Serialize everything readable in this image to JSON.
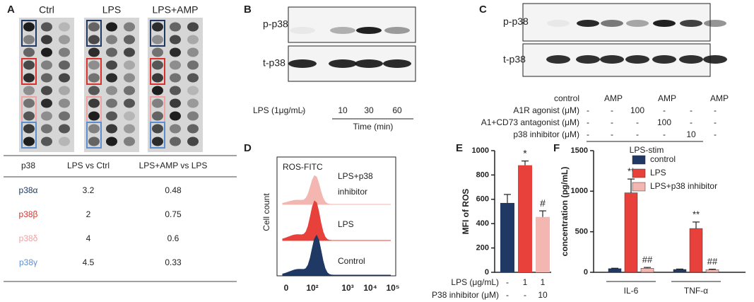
{
  "panel_a": {
    "letter": "A",
    "headers": [
      "Ctrl",
      "LPS",
      "LPS+AMP"
    ],
    "table": {
      "header": [
        "p38",
        "LPS vs Ctrl",
        "LPS+AMP vs LPS"
      ],
      "rows": [
        [
          "p38α",
          3.2,
          0.48
        ],
        [
          "p38β",
          2,
          0.75
        ],
        [
          "p38δ",
          4,
          0.6
        ],
        [
          "p38γ",
          4.5,
          0.33
        ]
      ],
      "row_colors": [
        "#1f3864",
        "#d9322c",
        "#f0a3a0",
        "#5b8fd1"
      ]
    }
  },
  "panel_b": {
    "letter": "B",
    "rows": [
      "p-p38",
      "t-p38"
    ],
    "condition_label": "LPS (1μg/mL)",
    "conditions": [
      "-",
      "10",
      "30",
      "60"
    ],
    "axis_label": "Time (min)"
  },
  "panel_c": {
    "letter": "C",
    "rows": [
      "p-p38",
      "t-p38"
    ],
    "lanes": [
      "control",
      "AMP",
      "AMP",
      "AMP"
    ],
    "treatments": [
      {
        "label": "A1R agonist (μM)",
        "values": [
          "-",
          "-",
          "100",
          "-",
          "-",
          "-"
        ]
      },
      {
        "label": "A1+CD73 antagonist (μM)",
        "values": [
          "-",
          "-",
          "-",
          "100",
          "-",
          "-"
        ]
      },
      {
        "label": "p38  inhibitor (μM)",
        "values": [
          "-",
          "-",
          "-",
          "-",
          "10",
          "-"
        ]
      }
    ],
    "group_label": "LPS-stim"
  },
  "panel_d": {
    "letter": "D",
    "stain": "ROS-FITC",
    "y_label": "Cell count",
    "samples": [
      [
        "LPS+p38",
        "inhibitor"
      ],
      [
        "LPS"
      ],
      [
        "Control"
      ]
    ],
    "xticks": [
      "0",
      "10²",
      "10³",
      "10⁴",
      "10⁵"
    ]
  },
  "chart_data": [
    {
      "type": "bar",
      "label": "E",
      "y_label": "MFI of ROS",
      "values": [
        570,
        880,
        455
      ],
      "errors": [
        70,
        35,
        50
      ],
      "annotations": [
        null,
        "*",
        "#"
      ],
      "colors": [
        "#1f3864",
        "#e8403a",
        "#f4b6b0"
      ],
      "ylim": [
        0,
        1000
      ],
      "yticks": [
        0,
        200,
        400,
        600,
        800,
        1000
      ],
      "conditions": [
        {
          "label": "LPS (μg/mL)",
          "values": [
            "-",
            "1",
            "1"
          ]
        },
        {
          "label": "P38 inhibitor (μM)",
          "values": [
            "-",
            "-",
            "10"
          ]
        }
      ]
    },
    {
      "type": "bar",
      "label": "F",
      "y_label": "concentration (pg/mL)",
      "categories": [
        "IL-6",
        "TNF-α"
      ],
      "series": [
        {
          "name": "control",
          "color": "#1f3864",
          "values": [
            45,
            35
          ],
          "errors": [
            5,
            5
          ],
          "annotations": [
            null,
            null
          ]
        },
        {
          "name": "LPS",
          "color": "#e8403a",
          "values": [
            980,
            540
          ],
          "errors": [
            170,
            80
          ],
          "annotations": [
            "**",
            "**"
          ]
        },
        {
          "name": "LPS+p38 inhibitor",
          "color": "#f4b6b0",
          "values": [
            50,
            30
          ],
          "errors": [
            10,
            8
          ],
          "annotations": [
            "##",
            "##"
          ]
        }
      ],
      "ylim": [
        0,
        1500
      ],
      "yticks": [
        0,
        500,
        1000,
        1500
      ]
    }
  ]
}
